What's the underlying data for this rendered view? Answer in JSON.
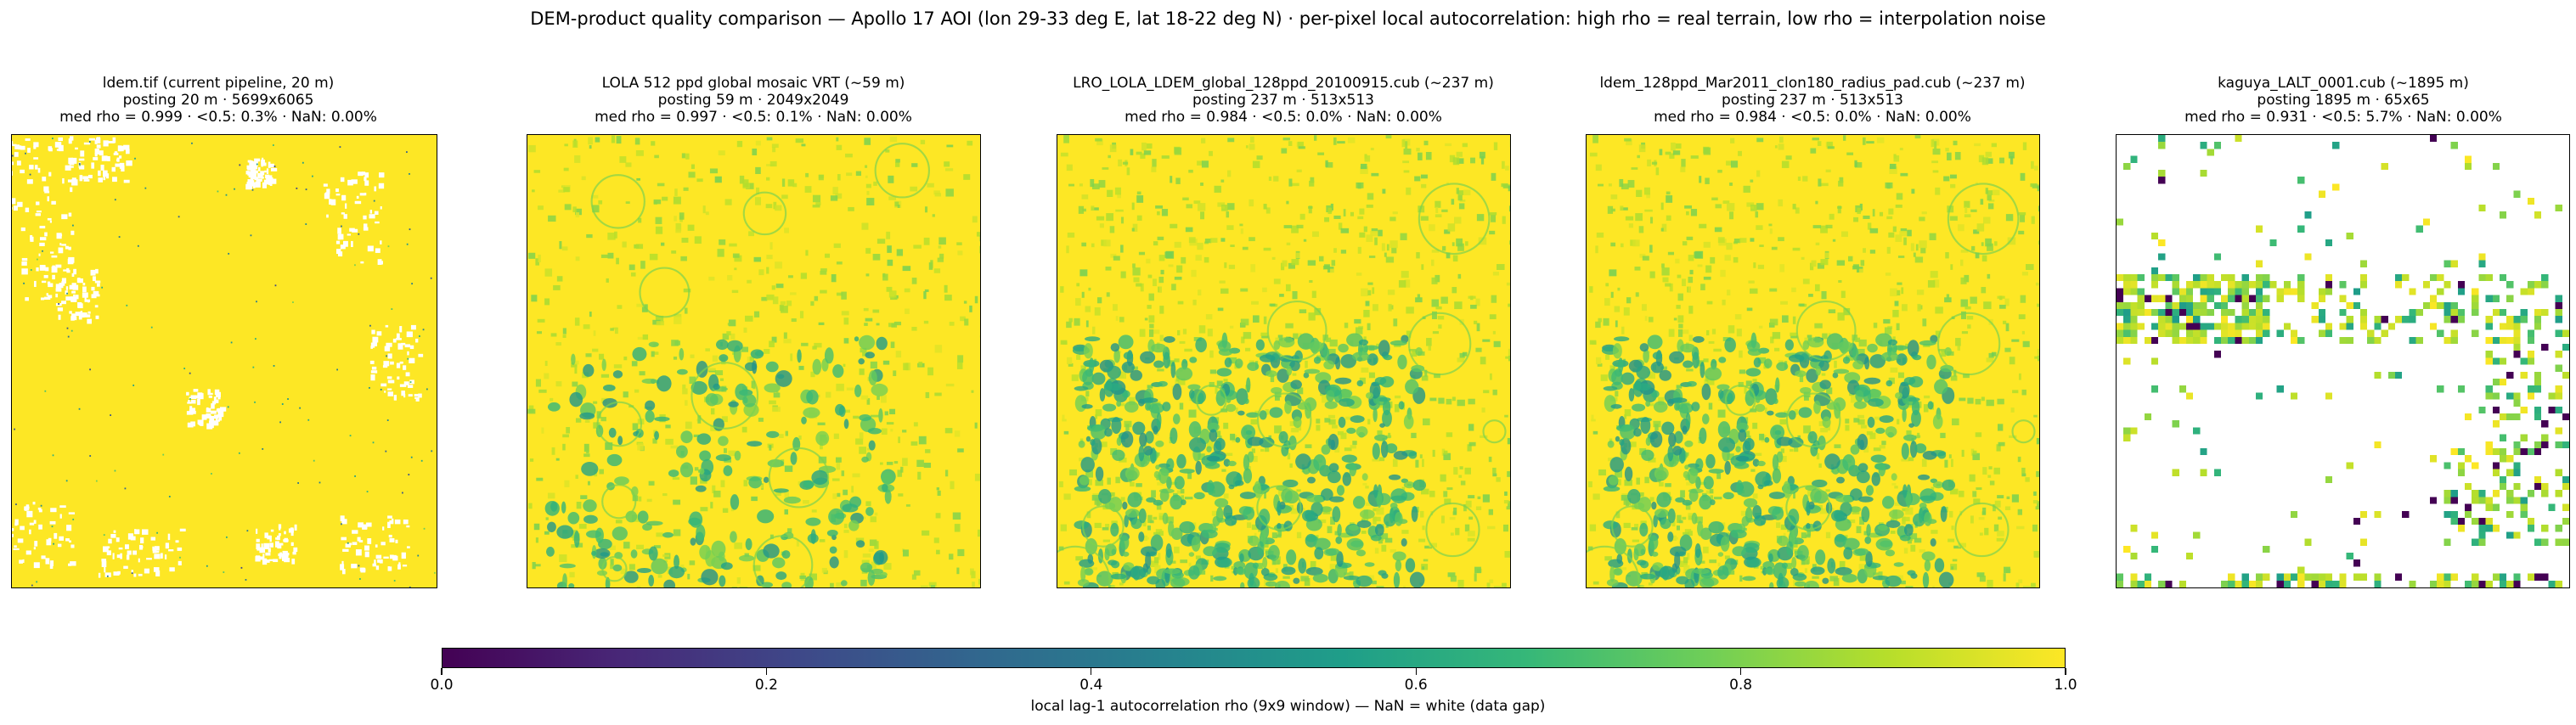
{
  "figure_title": "DEM-product quality comparison — Apollo 17 AOI (lon 29-33 deg E, lat 18-22 deg N)  ·  per-pixel local autocorrelation: high rho = real terrain, low rho = interpolation noise",
  "colormap": {
    "name": "viridis",
    "stops": [
      "#440154",
      "#482878",
      "#3e4989",
      "#31688e",
      "#26828e",
      "#1f9e89",
      "#35b779",
      "#6ece58",
      "#b5de2b",
      "#fde725"
    ],
    "nan_color": "#ffffff"
  },
  "colorbar": {
    "label": "local lag-1 autocorrelation rho (9x9 window) — NaN = white (data gap)",
    "ticks": [
      "0.0",
      "0.2",
      "0.4",
      "0.6",
      "0.8",
      "1.0"
    ],
    "range": [
      0.0,
      1.0
    ]
  },
  "panels": [
    {
      "title_line1": "ldem.tif (current pipeline, 20 m)",
      "title_line2": "posting 20 m · 5699x6065",
      "title_line3": "med rho = 0.999 · <0.5: 0.3% · NaN: 0.00%"
    },
    {
      "title_line1": "LOLA 512 ppd global mosaic VRT (~59 m)",
      "title_line2": "posting 59 m · 2049x2049",
      "title_line3": "med rho = 0.997 · <0.5: 0.1% · NaN: 0.00%"
    },
    {
      "title_line1": "LRO_LOLA_LDEM_global_128ppd_20100915.cub (~237 m)",
      "title_line2": "posting 237 m · 513x513",
      "title_line3": "med rho = 0.984 · <0.5: 0.0% · NaN: 0.00%"
    },
    {
      "title_line1": "ldem_128ppd_Mar2011_clon180_radius_pad.cub (~237 m)",
      "title_line2": "posting 237 m · 513x513",
      "title_line3": "med rho = 0.984 · <0.5: 0.0% · NaN: 0.00%"
    },
    {
      "title_line1": "kaguya_LALT_0001.cub (~1895 m)",
      "title_line2": "posting 1895 m · 65x65",
      "title_line3": "med rho = 0.931 · <0.5: 5.7% · NaN: 0.00%"
    }
  ],
  "chart_data": {
    "type": "heatmap",
    "title": "DEM-product quality comparison — Apollo 17 AOI (lon 29-33 deg E, lat 18-22 deg N)  ·  per-pixel local autocorrelation: high rho = real terrain, low rho = interpolation noise",
    "value_range": [
      0.0,
      1.0
    ],
    "colorbar_label": "local lag-1 autocorrelation rho (9x9 window) — NaN = white (data gap)",
    "panels": [
      {
        "product": "ldem.tif (current pipeline, 20 m)",
        "posting_m": 20,
        "size": "5699x6065",
        "median_rho": 0.999,
        "pct_below_0_5": 0.3,
        "pct_nan": 0.0
      },
      {
        "product": "LOLA 512 ppd global mosaic VRT (~59 m)",
        "posting_m": 59,
        "size": "2049x2049",
        "median_rho": 0.997,
        "pct_below_0_5": 0.1,
        "pct_nan": 0.0
      },
      {
        "product": "LRO_LOLA_LDEM_global_128ppd_20100915.cub (~237 m)",
        "posting_m": 237,
        "size": "513x513",
        "median_rho": 0.984,
        "pct_below_0_5": 0.0,
        "pct_nan": 0.0
      },
      {
        "product": "ldem_128ppd_Mar2011_clon180_radius_pad.cub (~237 m)",
        "posting_m": 237,
        "size": "513x513",
        "median_rho": 0.984,
        "pct_below_0_5": 0.0,
        "pct_nan": 0.0
      },
      {
        "product": "kaguya_LALT_0001.cub (~1895 m)",
        "posting_m": 1895,
        "size": "65x65",
        "median_rho": 0.931,
        "pct_below_0_5": 5.7,
        "pct_nan": 0.0
      }
    ]
  }
}
